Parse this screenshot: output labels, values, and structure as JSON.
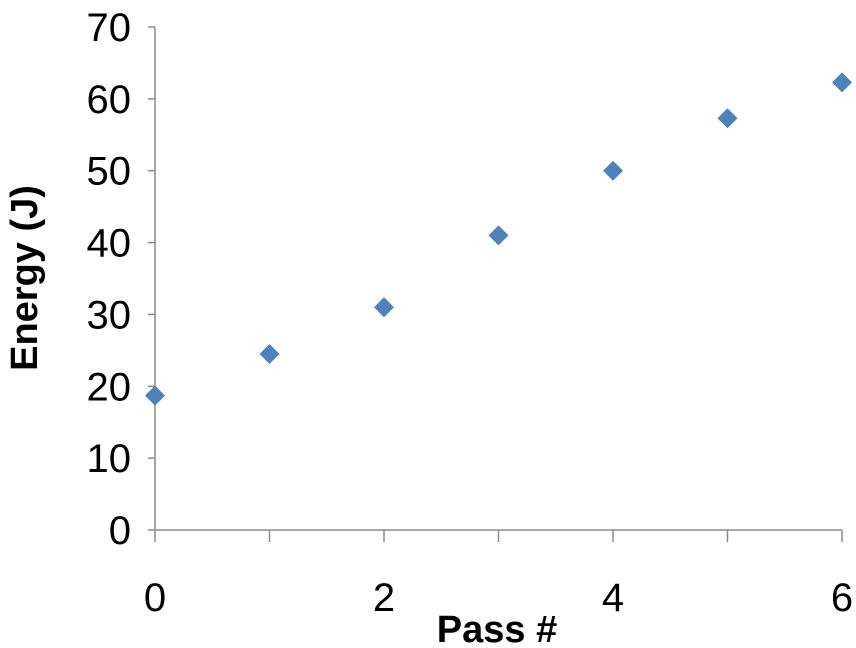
{
  "chart_data": {
    "type": "scatter",
    "title": "",
    "xlabel": "Pass #",
    "ylabel": "Energy (J)",
    "xlim": [
      0,
      6
    ],
    "ylim": [
      0,
      70
    ],
    "xticks": [
      0,
      2,
      4,
      6
    ],
    "yticks": [
      0,
      10,
      20,
      30,
      40,
      50,
      60,
      70
    ],
    "grid": false,
    "legend": "none",
    "marker": "diamond",
    "colors": {
      "marker": "#4F81BD"
    },
    "series": [
      {
        "x": [
          0,
          1,
          2,
          3,
          4,
          5,
          6
        ],
        "y": [
          18.7,
          24.5,
          31,
          41,
          50,
          57.3,
          62.3
        ]
      }
    ]
  }
}
